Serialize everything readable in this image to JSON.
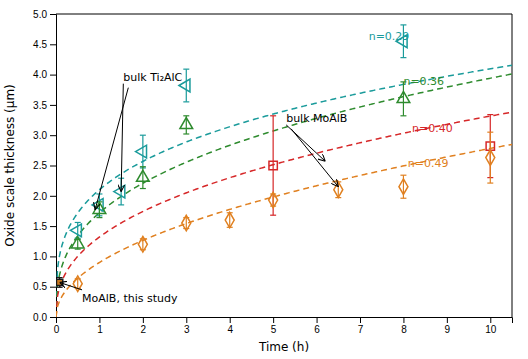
{
  "chart_data": {
    "type": "scatter",
    "xlabel": "Time (h)",
    "ylabel": "Oxide scale thickness (μm)",
    "xlim": [
      0,
      10.5
    ],
    "ylim": [
      0,
      5.0
    ],
    "xticks": [
      0,
      1,
      2,
      3,
      4,
      5,
      6,
      7,
      8,
      9,
      10
    ],
    "yticks": [
      {
        "value": 0,
        "label": "0.0"
      },
      0.5,
      {
        "value": 1,
        "label": "1.0"
      },
      1.5,
      {
        "value": 2,
        "label": "2.0"
      },
      2.5,
      {
        "value": 3,
        "label": "3.0"
      },
      3.5,
      {
        "value": 4,
        "label": "4.0"
      },
      4.5,
      {
        "value": 5,
        "label": "5.0"
      }
    ],
    "grid": false,
    "series": [
      {
        "color": "#1a9b9b",
        "marker": "triangle-left",
        "x": [
          0.5,
          1.0,
          1.5,
          2.0,
          3.0,
          8.0
        ],
        "values": [
          1.43,
          1.85,
          2.07,
          2.73,
          3.82,
          4.55
        ],
        "errors": [
          0.13,
          0.18,
          0.22,
          0.27,
          0.27,
          0.27
        ],
        "fit": {
          "A": 2.1,
          "n": 0.29,
          "line_style": "dashed",
          "label": "n=0.29",
          "label_x": 7.2,
          "label_y": 4.62
        }
      },
      {
        "color": "#2e8b2e",
        "marker": "triangle-up",
        "x": [
          0.5,
          1.0,
          2.0,
          3.0,
          8.0
        ],
        "values": [
          1.2,
          1.77,
          2.3,
          3.17,
          3.6
        ],
        "errors": [
          0.08,
          0.13,
          0.18,
          0.15,
          0.28
        ],
        "fit": {
          "A": 1.72,
          "n": 0.36,
          "line_style": "dashed",
          "label": "n=0.36",
          "label_x": 8.0,
          "label_y": 3.88
        }
      },
      {
        "color": "#d62728",
        "marker": "square",
        "x": [
          5.0,
          10.0
        ],
        "values": [
          2.5,
          2.82
        ],
        "errors": [
          0.82,
          0.52
        ],
        "fit": {
          "A": 1.32,
          "n": 0.4,
          "line_style": "dashed",
          "label": "n=0.40",
          "label_x": 8.2,
          "label_y": 3.1
        }
      },
      {
        "color": "#e08020",
        "marker": "diamond",
        "x": [
          0.5,
          2.0,
          3.0,
          4.0,
          5.0,
          6.5,
          8.0,
          10.0
        ],
        "values": [
          0.55,
          1.2,
          1.55,
          1.6,
          1.93,
          2.1,
          2.15,
          2.63
        ],
        "errors": [
          0.08,
          0.09,
          0.09,
          0.12,
          0.1,
          0.13,
          0.19,
          0.42
        ],
        "fit": {
          "A": 0.9,
          "n": 0.49,
          "line_style": "dashed",
          "label": "n=0.49",
          "label_x": 8.1,
          "label_y": 2.52
        }
      },
      {
        "color": "#1a1a1a",
        "fill": "#c87820",
        "marker": "square",
        "x": [
          0.083
        ],
        "values": [
          0.57
        ],
        "errors": [
          0.08
        ]
      }
    ],
    "annotations": [
      {
        "text": "bulk Ti₂AlC",
        "x": 1.55,
        "y": 3.9,
        "targets": [
          [
            1.5,
            2.07
          ],
          [
            0.9,
            1.77
          ]
        ]
      },
      {
        "text": "bulk MoAlB",
        "x": 5.3,
        "y": 3.22,
        "targets": [
          [
            6.2,
            2.57
          ],
          [
            6.5,
            2.15
          ]
        ]
      },
      {
        "text": "MoAlB, this study",
        "x": 0.6,
        "y": 0.25,
        "targets": [
          [
            0.083,
            0.57
          ]
        ]
      }
    ]
  }
}
